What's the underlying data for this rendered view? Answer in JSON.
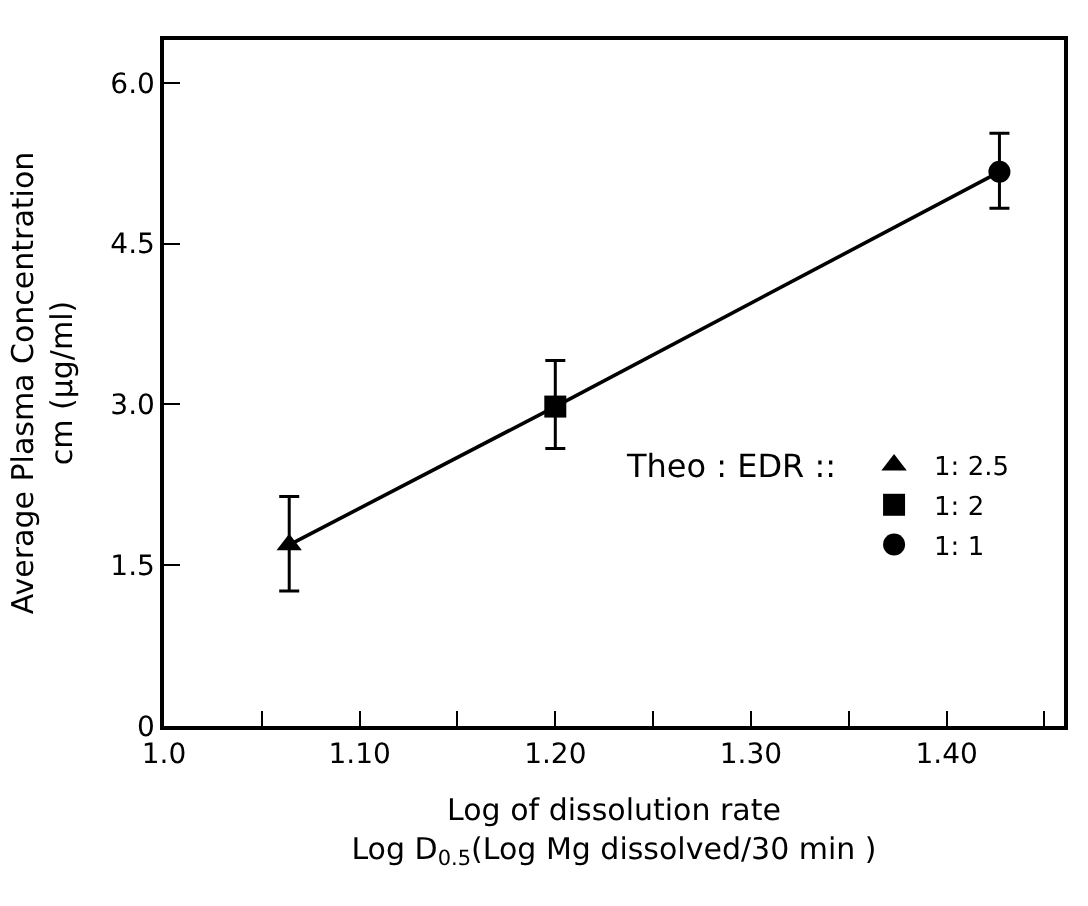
{
  "chart_data": {
    "type": "scatter",
    "xlabel": "Log of dissolution rate\nLog D$_{0.5}$(Log Mg dissolved/30 min )",
    "ylabel": "Average Plasma Concentration\ncm (µg/ml)",
    "legend_title": "Theo : EDR ::",
    "legend": "bottom right",
    "xlim": [
      1.0,
      1.46
    ],
    "xticks": [
      {
        "value": 1.0,
        "label": "1.0"
      },
      {
        "value": 1.05,
        "label": null
      },
      {
        "value": 1.1,
        "label": "1.10"
      },
      {
        "value": 1.15,
        "label": null
      },
      {
        "value": 1.2,
        "label": "1.20"
      },
      {
        "value": 1.25,
        "label": null
      },
      {
        "value": 1.3,
        "label": "1.30"
      },
      {
        "value": 1.35,
        "label": null
      },
      {
        "value": 1.4,
        "label": "1.40"
      },
      {
        "value": 1.45,
        "label": null
      }
    ],
    "ylim": [
      0,
      6.4
    ],
    "yticks": [
      0,
      1.5,
      {
        "value": 3.0,
        "label": "3.0"
      },
      4.5,
      {
        "value": 6.0,
        "label": "6.0"
      }
    ],
    "series": [
      {
        "type": "line",
        "color": "#000000",
        "x": [
          1.064,
          1.2,
          1.427
        ],
        "values": [
          1.69,
          2.98,
          5.17
        ],
        "marker": "none",
        "line_style": "solid"
      },
      {
        "name": "1: 2.5",
        "color": "#000000",
        "marker": "triangle",
        "x": [
          1.064
        ],
        "values": [
          1.69
        ],
        "errors": [
          [
            1.26,
            2.14
          ]
        ]
      },
      {
        "name": "1: 2",
        "color": "#000000",
        "marker": "square",
        "x": [
          1.2
        ],
        "values": [
          2.98
        ],
        "errors": [
          [
            2.59,
            3.41
          ]
        ]
      },
      {
        "name": "1: 1",
        "color": "#000000",
        "marker": "circle",
        "x": [
          1.427
        ],
        "values": [
          5.17
        ],
        "errors": [
          [
            4.83,
            5.53
          ]
        ]
      }
    ]
  }
}
